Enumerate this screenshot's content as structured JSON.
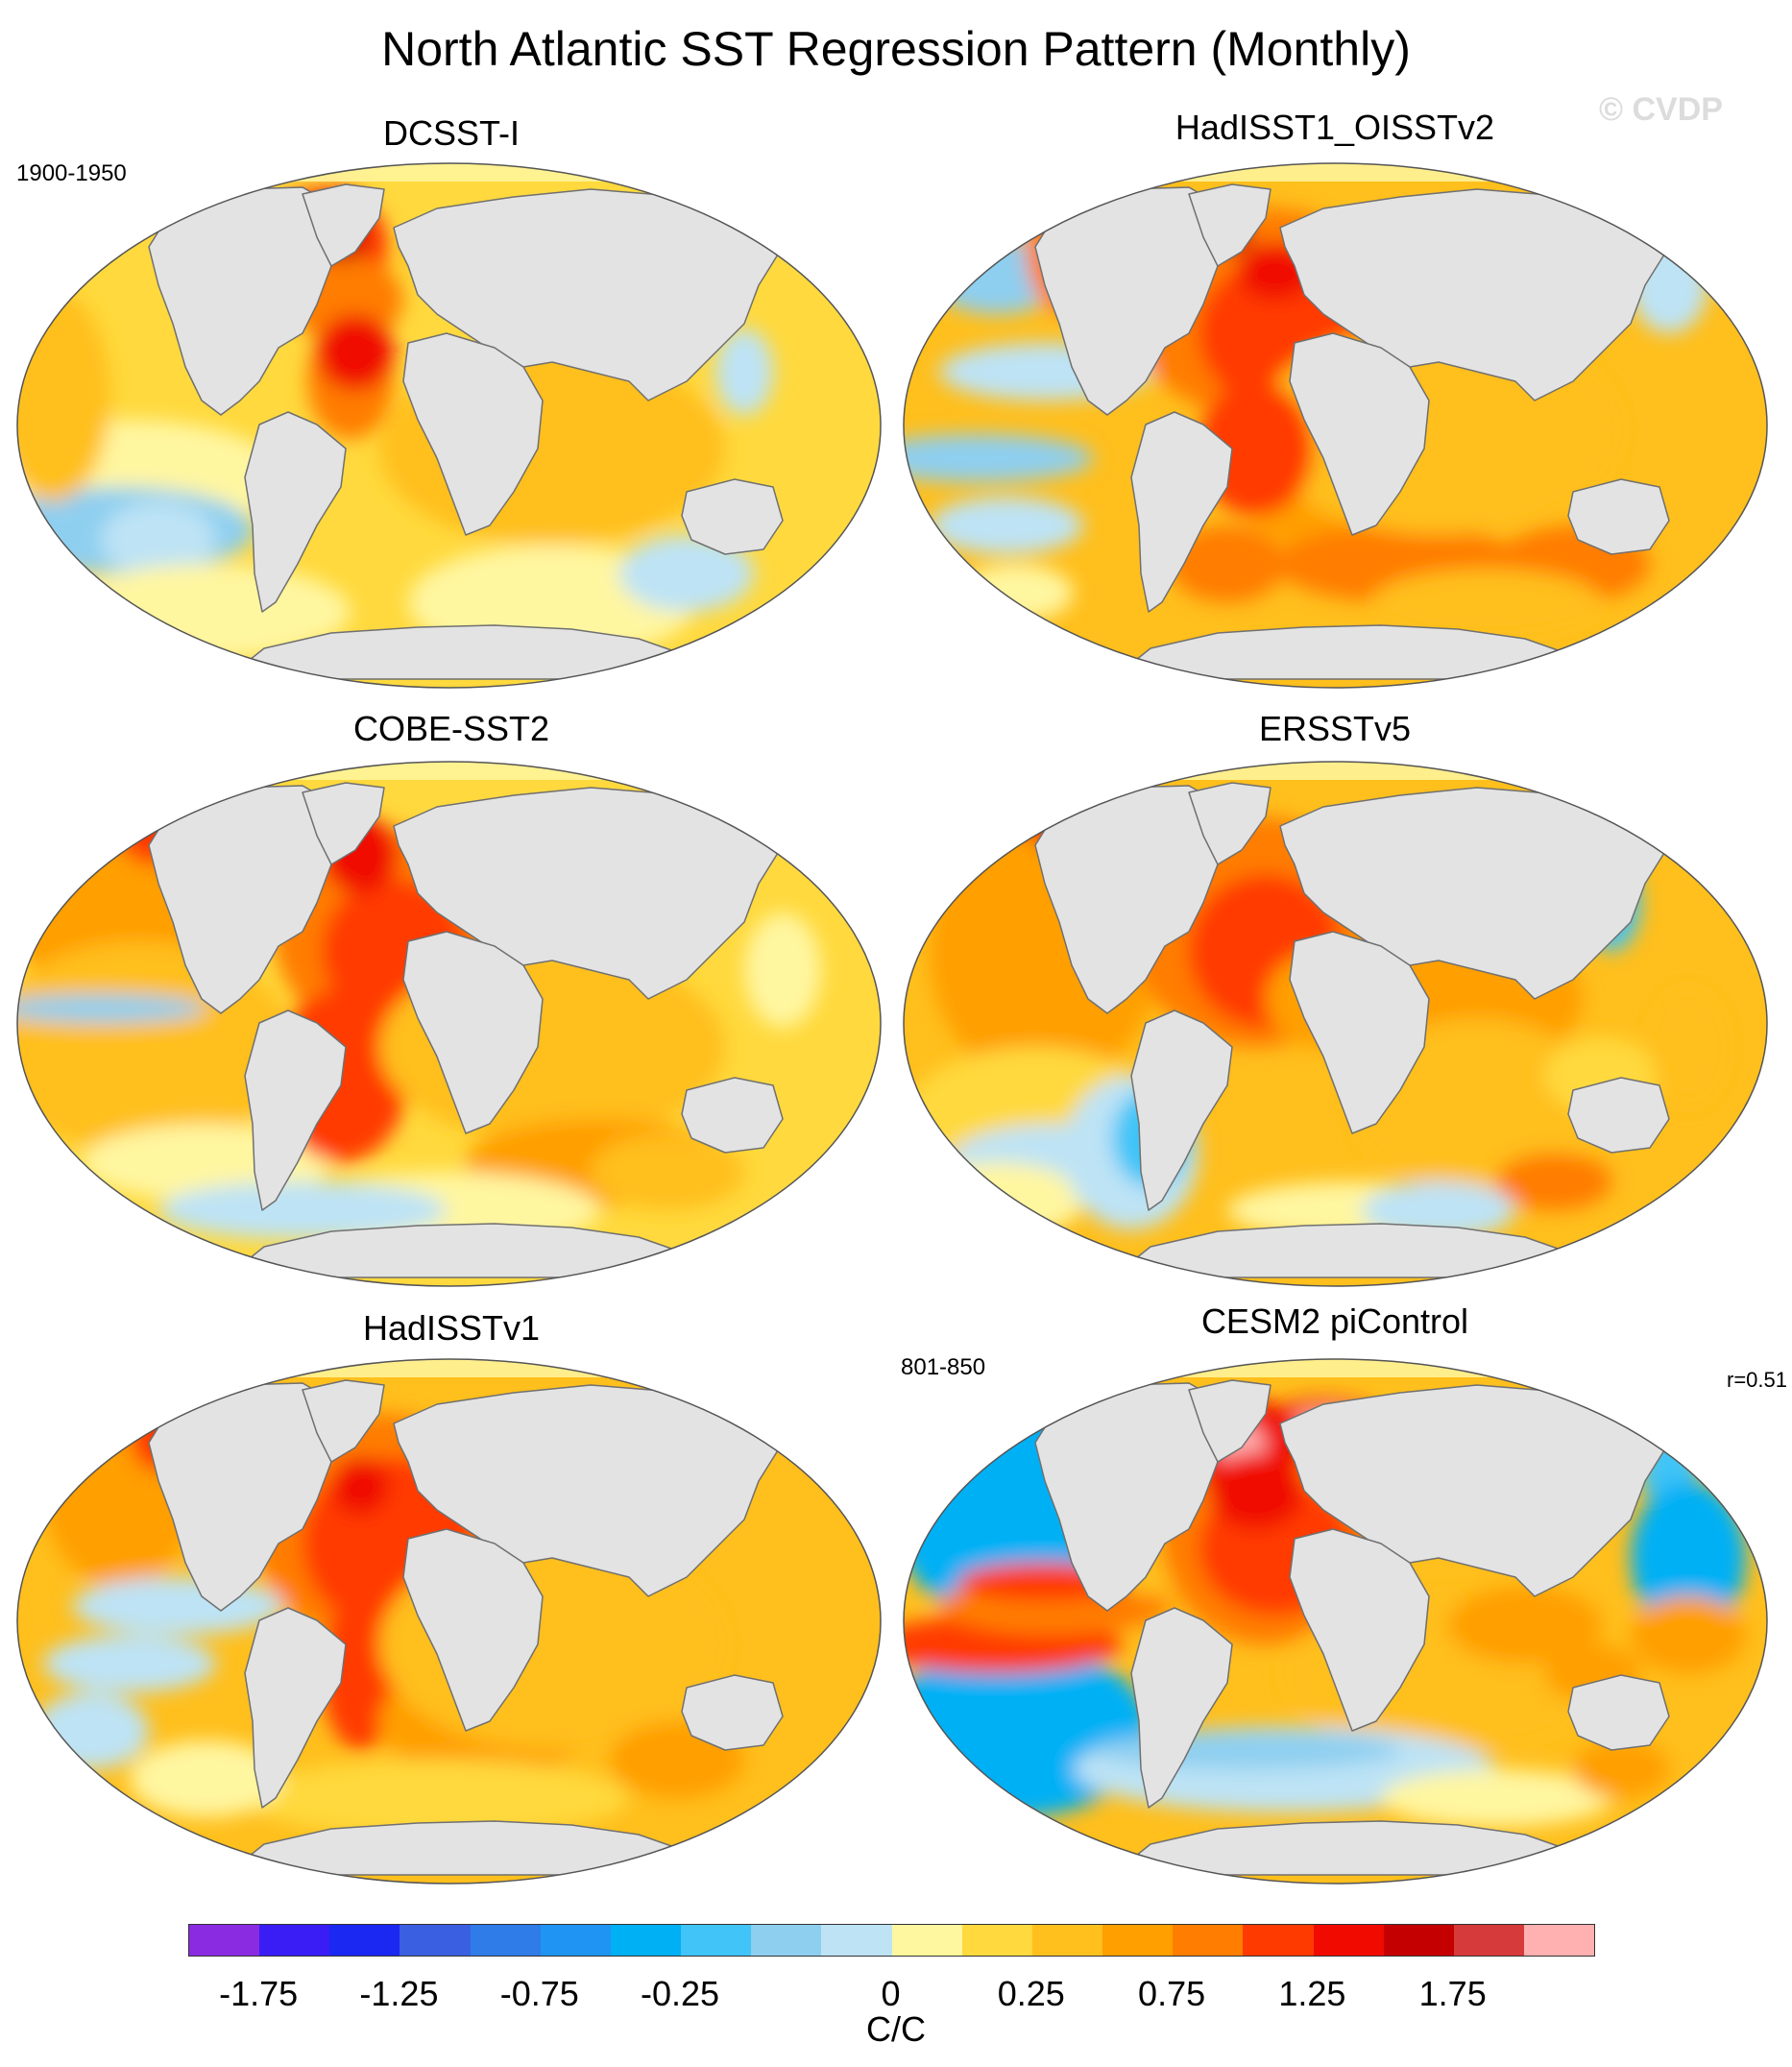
{
  "title": "North Atlantic SST Regression Pattern (Monthly)",
  "watermark": "© CVDP",
  "panels": [
    {
      "title": "DCSST-I",
      "left_label": "1900-1950",
      "right_label": "",
      "pattern": "dcsst"
    },
    {
      "title": "HadISST1_OISSTv2",
      "left_label": "",
      "right_label": "",
      "pattern": "hadoi"
    },
    {
      "title": "COBE-SST2",
      "left_label": "",
      "right_label": "",
      "pattern": "cobe"
    },
    {
      "title": "ERSSTv5",
      "left_label": "",
      "right_label": "",
      "pattern": "ersst"
    },
    {
      "title": "HadISSTv1",
      "left_label": "",
      "right_label": "",
      "pattern": "hadv1"
    },
    {
      "title": "CESM2 piControl",
      "left_label": "801-850",
      "right_label": "r=0.51",
      "pattern": "cesm"
    }
  ],
  "colorbar": {
    "colors": [
      "#8a2be2",
      "#3a1df5",
      "#1a28f2",
      "#3a5fe0",
      "#2f7be8",
      "#1f94f2",
      "#00b0f5",
      "#41c4f7",
      "#8ecff0",
      "#bde3f5",
      "#fff6a0",
      "#ffd93d",
      "#ffbf1c",
      "#ff9f00",
      "#ff7d00",
      "#ff3a00",
      "#f00a00",
      "#c40000",
      "#d63a3a",
      "#ffb0b0"
    ],
    "tick_labels": [
      "-1.75",
      "-1.25",
      "-0.75",
      "-0.25",
      "0",
      "0.25",
      "0.75",
      "1.25",
      "1.75"
    ],
    "units": "C/C"
  },
  "map_colors": {
    "land": "#e3e3e3",
    "coast": "#707070",
    "frame": "#555555"
  }
}
